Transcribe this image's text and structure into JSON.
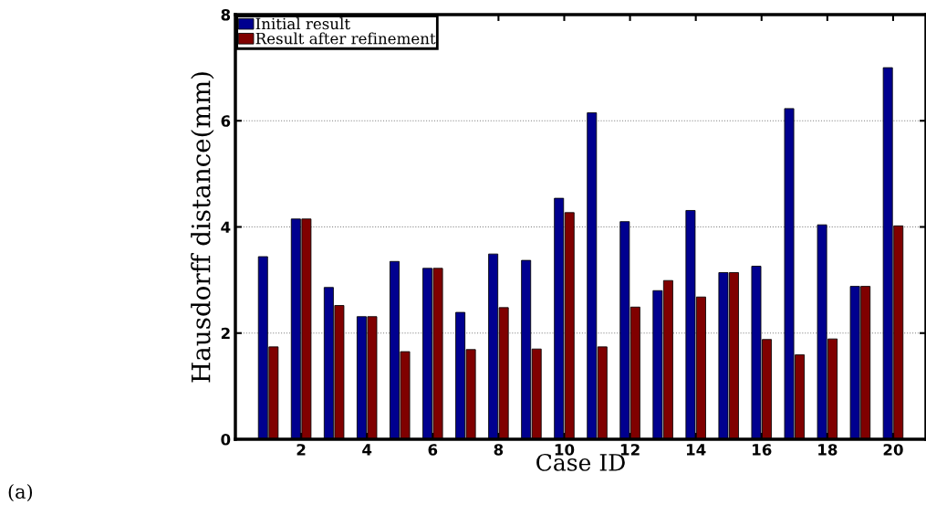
{
  "chart_data": {
    "type": "bar",
    "xlabel": "Case ID",
    "ylabel": "Hausdorff distance(mm)",
    "x": [
      1,
      2,
      3,
      4,
      5,
      6,
      7,
      8,
      9,
      10,
      11,
      12,
      13,
      14,
      15,
      16,
      17,
      18,
      19,
      20
    ],
    "series": [
      {
        "name": "Initial result",
        "color": "#00008f",
        "values": [
          3.44,
          4.15,
          2.86,
          2.31,
          3.35,
          3.22,
          2.39,
          3.49,
          3.37,
          4.54,
          6.15,
          4.1,
          2.8,
          4.31,
          3.14,
          3.26,
          6.23,
          4.04,
          2.88,
          7.0
        ]
      },
      {
        "name": "Result after refinement",
        "color": "#800000",
        "values": [
          1.74,
          4.15,
          2.52,
          2.31,
          1.65,
          3.22,
          1.69,
          2.48,
          1.7,
          4.27,
          1.74,
          2.49,
          2.99,
          2.68,
          3.14,
          1.88,
          1.59,
          1.89,
          2.88,
          4.02
        ]
      }
    ],
    "xlim": [
      0,
      21
    ],
    "xticks": [
      2,
      4,
      6,
      8,
      10,
      12,
      14,
      16,
      18,
      20
    ],
    "ylim": [
      0,
      8
    ],
    "yticks": [
      0,
      2,
      4,
      6,
      8
    ],
    "grid": "y",
    "legend": "top left",
    "annotations": [
      "(a)"
    ]
  }
}
